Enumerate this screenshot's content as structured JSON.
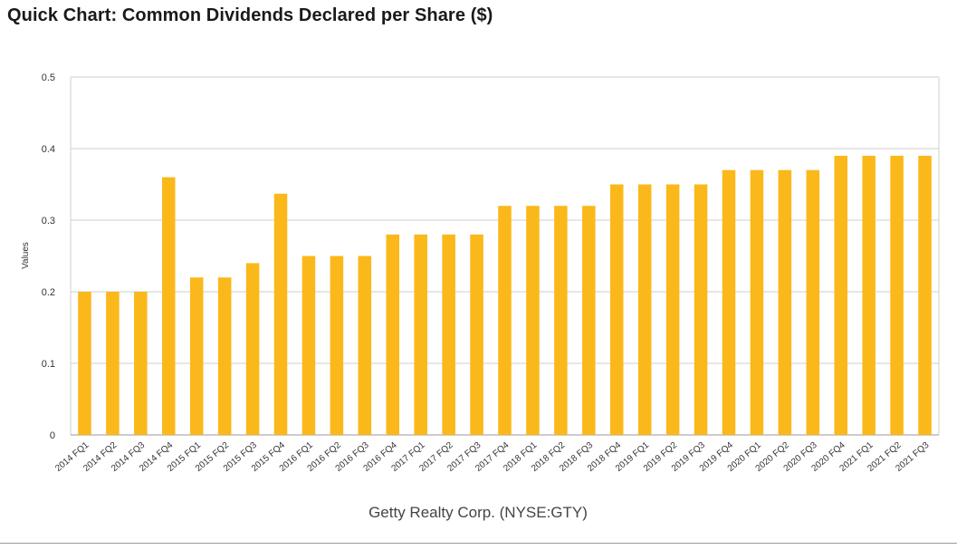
{
  "page": {
    "title": "Quick Chart: Common Dividends Declared per Share ($)"
  },
  "chart_data": {
    "type": "bar",
    "title": "Quick Chart: Common Dividends Declared per Share ($)",
    "xlabel": "Getty Realty Corp. (NYSE:GTY)",
    "ylabel": "Values",
    "ylim": [
      0,
      0.5
    ],
    "yticks": [
      "0",
      "0.1",
      "0.2",
      "0.3",
      "0.4",
      "0.5"
    ],
    "grid": true,
    "bar_color": "#FBB81A",
    "categories": [
      "2014 FQ1",
      "2014 FQ2",
      "2014 FQ3",
      "2014 FQ4",
      "2015 FQ1",
      "2015 FQ2",
      "2015 FQ3",
      "2015 FQ4",
      "2016 FQ1",
      "2016 FQ2",
      "2016 FQ3",
      "2016 FQ4",
      "2017 FQ1",
      "2017 FQ2",
      "2017 FQ3",
      "2017 FQ4",
      "2018 FQ1",
      "2018 FQ2",
      "2018 FQ3",
      "2018 FQ4",
      "2019 FQ1",
      "2019 FQ2",
      "2019 FQ3",
      "2019 FQ4",
      "2020 FQ1",
      "2020 FQ2",
      "2020 FQ3",
      "2020 FQ4",
      "2021 FQ1",
      "2021 FQ2",
      "2021 FQ3"
    ],
    "values": [
      0.2,
      0.2,
      0.2,
      0.36,
      0.22,
      0.22,
      0.24,
      0.337,
      0.25,
      0.25,
      0.25,
      0.28,
      0.28,
      0.28,
      0.28,
      0.32,
      0.32,
      0.32,
      0.32,
      0.35,
      0.35,
      0.35,
      0.35,
      0.37,
      0.37,
      0.37,
      0.37,
      0.39,
      0.39,
      0.39,
      0.39
    ]
  }
}
